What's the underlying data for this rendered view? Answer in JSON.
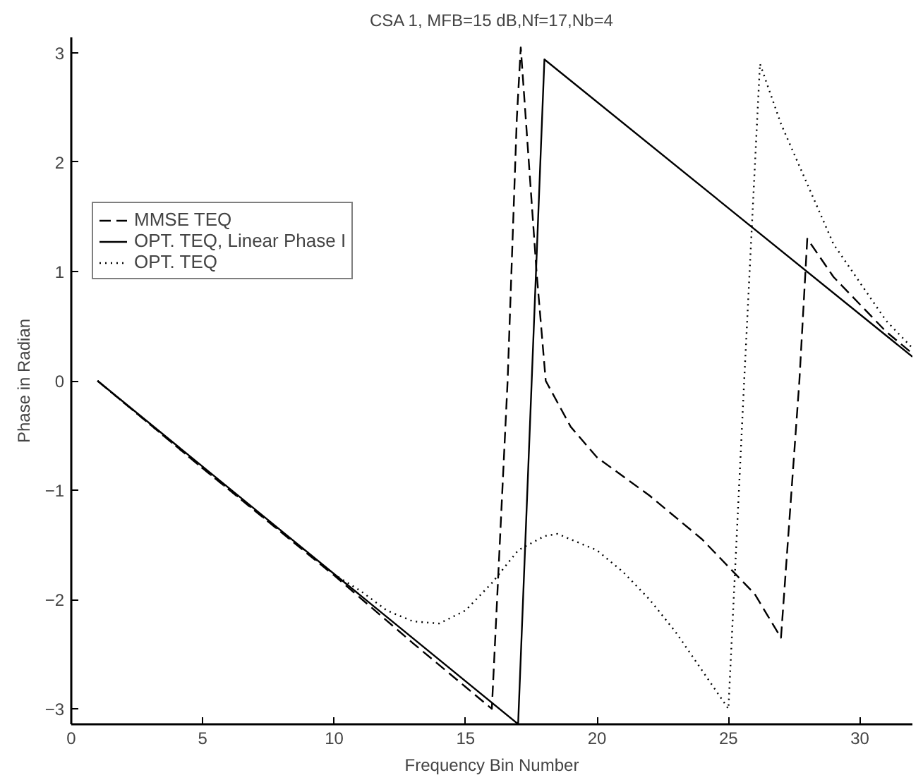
{
  "chart_data": {
    "type": "line",
    "title": "CSA 1, MFB=15 dB,Nf=17,Nb=4",
    "xlabel": "Frequency Bin Number",
    "ylabel": "Phase in Radian",
    "xlim": [
      0,
      32
    ],
    "xticks": [
      0,
      5,
      10,
      15,
      20,
      25,
      30
    ],
    "ylim": [
      -3.1416,
      3.1416
    ],
    "yticks": [
      -3,
      -2,
      -1,
      0,
      1,
      2,
      3
    ],
    "grid": false,
    "legend": "top left",
    "marker": "none",
    "series": [
      {
        "name": "MMSE TEQ",
        "color": "#000000",
        "line_style": "dashed",
        "x": [
          1,
          5,
          10,
          13,
          15,
          16,
          16.6,
          16.95,
          17.1,
          17.7,
          18.05,
          19,
          20,
          22,
          24,
          25,
          26,
          26.5,
          27,
          27.7,
          28,
          29,
          30,
          31,
          32
        ],
        "values": [
          0,
          -0.8,
          -1.78,
          -2.4,
          -2.8,
          -3.0,
          0,
          2.4,
          3.05,
          1.0,
          0,
          -0.42,
          -0.7,
          -1.05,
          -1.45,
          -1.7,
          -1.95,
          -2.15,
          -2.35,
          0,
          1.3,
          0.95,
          0.7,
          0.45,
          0.25
        ]
      },
      {
        "name": "OPT. TEQ, Linear Phase I",
        "color": "#000000",
        "line_style": "solid",
        "x": [
          1,
          17,
          18,
          32
        ],
        "values": [
          0,
          -3.14,
          2.94,
          0.22
        ]
      },
      {
        "name": "OPT. TEQ",
        "color": "#000000",
        "line_style": "dotted",
        "x": [
          1,
          5,
          10,
          11,
          12,
          13,
          14,
          15,
          16,
          17,
          18,
          18.5,
          19,
          20,
          21,
          22,
          23,
          24,
          25,
          25.6,
          26.2,
          27,
          28,
          29,
          30,
          31,
          32
        ],
        "values": [
          0,
          -0.8,
          -1.77,
          -1.92,
          -2.1,
          -2.2,
          -2.22,
          -2.1,
          -1.85,
          -1.55,
          -1.42,
          -1.4,
          -1.45,
          -1.55,
          -1.75,
          -2.0,
          -2.3,
          -2.65,
          -3.0,
          0,
          2.9,
          2.35,
          1.8,
          1.25,
          0.9,
          0.55,
          0.3
        ]
      }
    ]
  }
}
